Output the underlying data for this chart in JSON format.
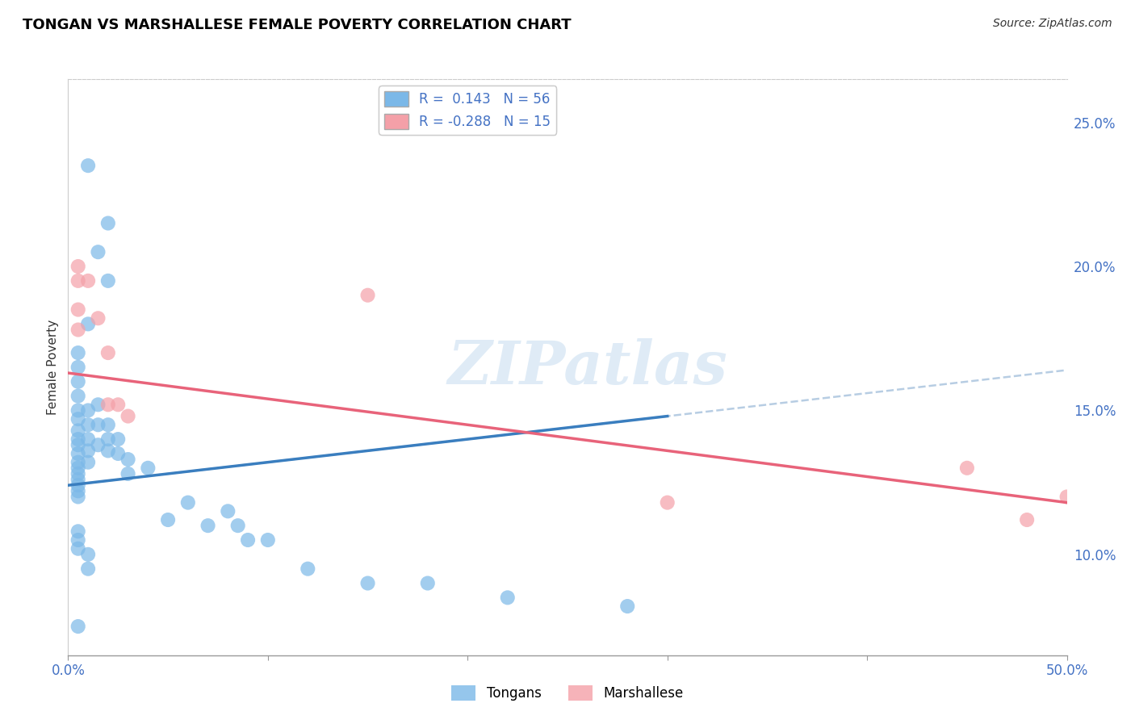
{
  "title": "TONGAN VS MARSHALLESE FEMALE POVERTY CORRELATION CHART",
  "source": "Source: ZipAtlas.com",
  "ylabel": "Female Poverty",
  "xlim": [
    0.0,
    0.5
  ],
  "ylim": [
    0.065,
    0.265
  ],
  "yticks_right": [
    0.1,
    0.15,
    0.2,
    0.25
  ],
  "yticklabels_right": [
    "10.0%",
    "15.0%",
    "20.0%",
    "25.0%"
  ],
  "legend_blue_r": "0.143",
  "legend_blue_n": "56",
  "legend_pink_r": "-0.288",
  "legend_pink_n": "15",
  "blue_color": "#7bb8e8",
  "pink_color": "#f4a0a8",
  "trendline_blue": "#3a7ebf",
  "trendline_pink": "#e8637a",
  "trendline_dashed_color": "#b0c8e0",
  "watermark": "ZIPatlas",
  "tongans_x": [
    0.01,
    0.02,
    0.015,
    0.02,
    0.01,
    0.005,
    0.005,
    0.005,
    0.005,
    0.005,
    0.005,
    0.005,
    0.005,
    0.005,
    0.005,
    0.005,
    0.005,
    0.005,
    0.005,
    0.005,
    0.005,
    0.005,
    0.01,
    0.01,
    0.01,
    0.01,
    0.01,
    0.015,
    0.015,
    0.015,
    0.02,
    0.02,
    0.02,
    0.025,
    0.025,
    0.03,
    0.03,
    0.04,
    0.05,
    0.06,
    0.07,
    0.08,
    0.085,
    0.09,
    0.1,
    0.12,
    0.15,
    0.18,
    0.22,
    0.28,
    0.005,
    0.005,
    0.005,
    0.01,
    0.01,
    0.005
  ],
  "tongans_y": [
    0.235,
    0.215,
    0.205,
    0.195,
    0.18,
    0.17,
    0.165,
    0.16,
    0.155,
    0.15,
    0.147,
    0.143,
    0.14,
    0.138,
    0.135,
    0.132,
    0.13,
    0.128,
    0.126,
    0.124,
    0.122,
    0.12,
    0.15,
    0.145,
    0.14,
    0.136,
    0.132,
    0.152,
    0.145,
    0.138,
    0.145,
    0.14,
    0.136,
    0.14,
    0.135,
    0.133,
    0.128,
    0.13,
    0.112,
    0.118,
    0.11,
    0.115,
    0.11,
    0.105,
    0.105,
    0.095,
    0.09,
    0.09,
    0.085,
    0.082,
    0.108,
    0.105,
    0.102,
    0.1,
    0.095,
    0.075
  ],
  "marshallese_x": [
    0.005,
    0.005,
    0.005,
    0.005,
    0.01,
    0.015,
    0.02,
    0.02,
    0.025,
    0.03,
    0.15,
    0.3,
    0.45,
    0.48,
    0.5
  ],
  "marshallese_y": [
    0.2,
    0.195,
    0.185,
    0.178,
    0.195,
    0.182,
    0.17,
    0.152,
    0.152,
    0.148,
    0.19,
    0.118,
    0.13,
    0.112,
    0.12
  ],
  "blue_slope": 0.08,
  "blue_intercept": 0.124,
  "pink_slope": -0.09,
  "pink_intercept": 0.163,
  "dashed_slope": 0.08,
  "dashed_intercept": 0.124
}
